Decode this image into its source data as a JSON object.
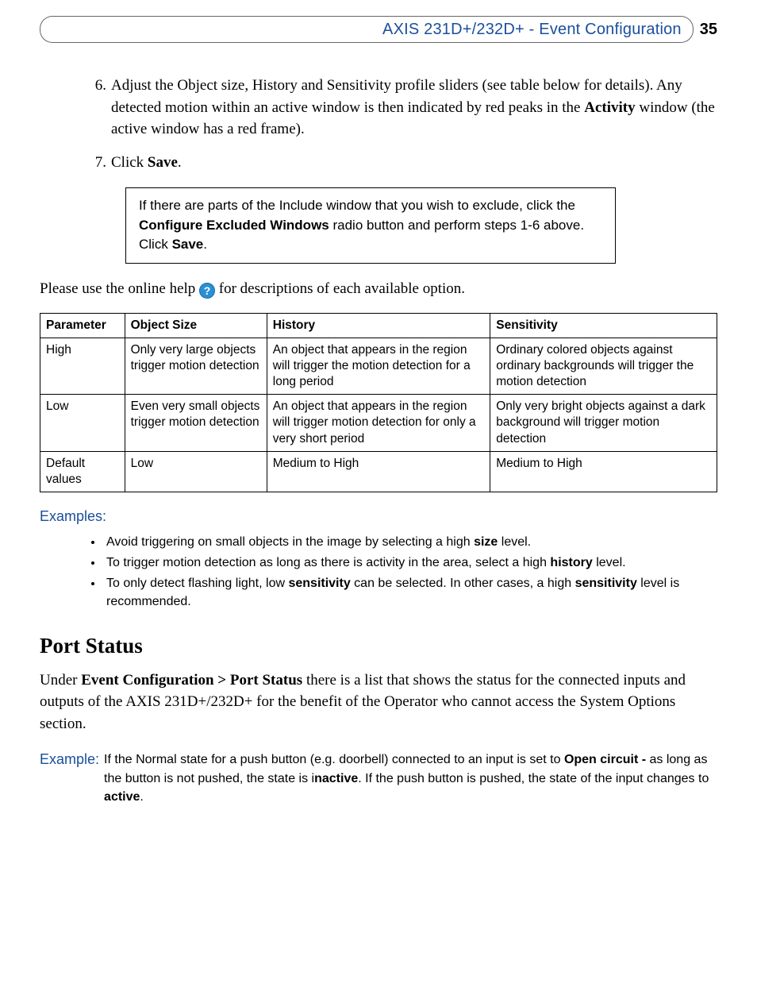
{
  "header": {
    "title": "AXIS 231D+/232D+ - Event Configuration",
    "page_number": "35",
    "title_color": "#1a4f9c"
  },
  "steps": [
    {
      "num": "6.",
      "text_parts": [
        {
          "t": "Adjust the Object size, History and Sensitivity profile sliders (see table below for details). Any detected motion within an active window is then indicated by red peaks in the "
        },
        {
          "t": "Activity",
          "bold": true
        },
        {
          "t": " window (the active window has a red frame)."
        }
      ]
    },
    {
      "num": "7.",
      "text_parts": [
        {
          "t": "Click "
        },
        {
          "t": "Save",
          "bold": true
        },
        {
          "t": "."
        }
      ]
    }
  ],
  "note": {
    "parts": [
      {
        "t": "If there are parts of the Include window that you wish to exclude, click the "
      },
      {
        "t": "Configure Excluded Windows",
        "bold": true
      },
      {
        "t": " radio button and perform steps 1-6 above. Click "
      },
      {
        "t": "Save",
        "bold": true
      },
      {
        "t": "."
      }
    ]
  },
  "help_line": {
    "before": "Please use the online help ",
    "after": " for descriptions of each available option.",
    "icon_glyph": "?"
  },
  "table": {
    "columns": [
      "Parameter",
      "Object Size",
      "History",
      "Sensitivity"
    ],
    "rows": [
      [
        "High",
        "Only very large objects trigger motion detection",
        "An object that appears in the region will trigger the motion detection for a long period",
        "Ordinary colored objects against ordinary backgrounds will trigger the motion detection"
      ],
      [
        "Low",
        "Even very small objects trigger motion detection",
        "An object that appears in the region will trigger motion detection for only a very short period",
        "Only very bright objects against a dark background will trigger motion detection"
      ],
      [
        "Default values",
        "Low",
        "Medium to High",
        "Medium to High"
      ]
    ],
    "col_widths_pct": [
      12.5,
      21,
      33,
      33.5
    ]
  },
  "examples": {
    "heading": "Examples:",
    "items": [
      [
        {
          "t": "Avoid triggering on small objects in the image by selecting a high "
        },
        {
          "t": "size",
          "bold": true
        },
        {
          "t": " level."
        }
      ],
      [
        {
          "t": "To trigger motion detection as long as there is activity in the area, select a high "
        },
        {
          "t": "history",
          "bold": true
        },
        {
          "t": " level."
        }
      ],
      [
        {
          "t": "To only detect flashing light, low "
        },
        {
          "t": "sensitivity",
          "bold": true
        },
        {
          "t": " can be selected. In other cases, a high "
        },
        {
          "t": "sensitivity",
          "bold": true
        },
        {
          "t": " level is recommended."
        }
      ]
    ]
  },
  "port_status": {
    "heading": "Port Status",
    "para_parts": [
      {
        "t": "Under "
      },
      {
        "t": "Event Configuration > Port Status",
        "bold": true
      },
      {
        "t": " there is a list that shows the status for the connected inputs and outputs of the AXIS 231D+/232D+ for the benefit of the Operator who cannot access the System Options section."
      }
    ],
    "example_label": "Example:",
    "example_parts": [
      {
        "t": "If the Normal state for a push button (e.g. doorbell) connected to an input is set to "
      },
      {
        "t": "Open circuit -",
        "bold": true
      },
      {
        "t": " as long as the button is not pushed, the state is i"
      },
      {
        "t": "nactive",
        "bold": true
      },
      {
        "t": ". If the push button is pushed, the state of the input changes to "
      },
      {
        "t": "active",
        "bold": true
      },
      {
        "t": "."
      }
    ]
  }
}
